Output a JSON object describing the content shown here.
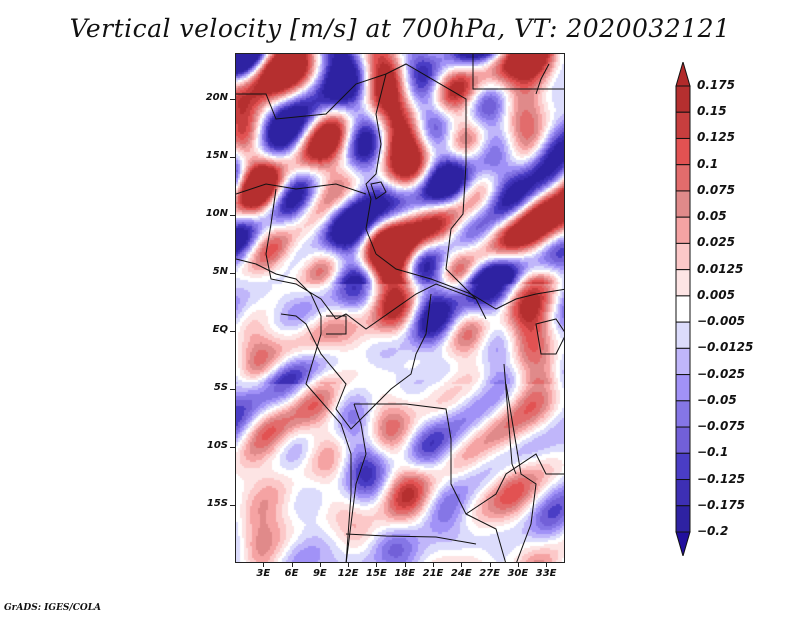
{
  "title": "Vertical velocity [m/s] at 700hPa, VT: 2020032121",
  "credit": "GrADS: IGES/COLA",
  "map": {
    "variable": "Vertical velocity",
    "units": "m/s",
    "level": "700hPa",
    "valid_time": "2020032121",
    "lon_range_deg": [
      0,
      35
    ],
    "lat_range_deg": [
      -20,
      24
    ],
    "y_tick_labels": [
      {
        "label": "20N",
        "lat": 20
      },
      {
        "label": "15N",
        "lat": 15
      },
      {
        "label": "10N",
        "lat": 10
      },
      {
        "label": "5N",
        "lat": 5
      },
      {
        "label": "EQ",
        "lat": 0
      },
      {
        "label": "5S",
        "lat": -5
      },
      {
        "label": "10S",
        "lat": -10
      },
      {
        "label": "15S",
        "lat": -15
      }
    ],
    "x_tick_labels": [
      {
        "label": "3E",
        "lon": 3
      },
      {
        "label": "6E",
        "lon": 6
      },
      {
        "label": "9E",
        "lon": 9
      },
      {
        "label": "12E",
        "lon": 12
      },
      {
        "label": "15E",
        "lon": 15
      },
      {
        "label": "18E",
        "lon": 18
      },
      {
        "label": "21E",
        "lon": 21
      },
      {
        "label": "24E",
        "lon": 24
      },
      {
        "label": "27E",
        "lon": 27
      },
      {
        "label": "30E",
        "lon": 30
      },
      {
        "label": "33E",
        "lon": 33
      }
    ]
  },
  "colorbar": {
    "labels": [
      "0.175",
      "0.15",
      "0.125",
      "0.1",
      "0.075",
      "0.05",
      "0.025",
      "0.0125",
      "0.005",
      "−0.005",
      "−0.0125",
      "−0.025",
      "−0.05",
      "−0.075",
      "−0.1",
      "−0.125",
      "−0.175",
      "−0.2"
    ],
    "colors": [
      "#b22a2a",
      "#b52f2f",
      "#c73e3e",
      "#e25252",
      "#e26c6c",
      "#e08a8a",
      "#f5a3a3",
      "#fcc8c8",
      "#fde4e4",
      "#ffffff",
      "#dcdcfc",
      "#c0b6fa",
      "#a192f7",
      "#8576e6",
      "#7260d8",
      "#4a3dc5",
      "#3d2fb4",
      "#2e22a2",
      "#22109e"
    ],
    "over_color": "#b22a2a",
    "under_color": "#22109e"
  }
}
